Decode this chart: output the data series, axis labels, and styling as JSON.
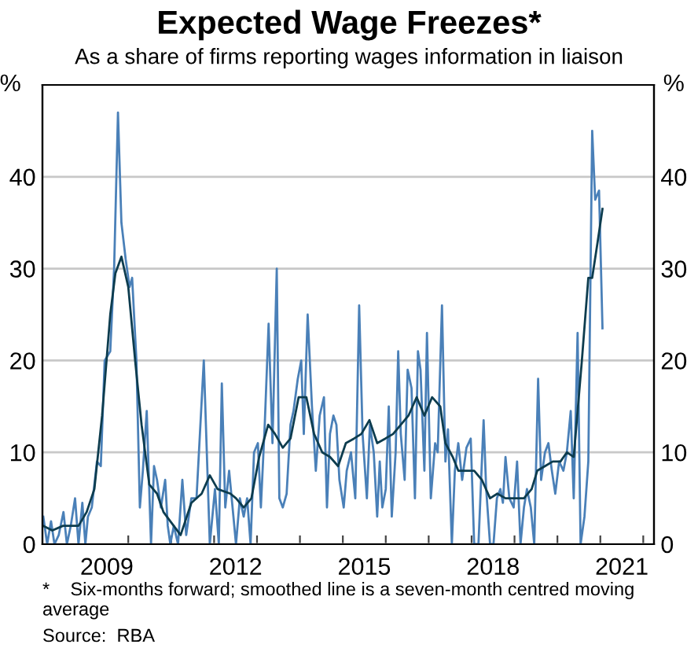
{
  "chart_data": {
    "type": "line",
    "title": "Expected Wage Freezes*",
    "subtitle": "As a share of firms reporting wages information in liaison",
    "ylabel": "%",
    "y2label": "%",
    "series": [
      {
        "color": "#4a80b8",
        "x": [
          2008.02,
          2008.11,
          2008.2,
          2008.28,
          2008.38,
          2008.49,
          2008.57,
          2008.66,
          2008.76,
          2008.84,
          2008.93,
          2009.0,
          2009.06,
          2009.15,
          2009.27,
          2009.36,
          2009.45,
          2009.58,
          2009.67,
          2009.76,
          2009.84,
          2009.94,
          2010.03,
          2010.09,
          2010.19,
          2010.27,
          2010.34,
          2010.43,
          2010.53,
          2010.6,
          2010.67,
          2010.76,
          2010.86,
          2010.92,
          2010.98,
          2011.06,
          2011.16,
          2011.26,
          2011.35,
          2011.47,
          2011.59,
          2011.76,
          2011.9,
          2012.02,
          2012.11,
          2012.18,
          2012.26,
          2012.35,
          2012.42,
          2012.51,
          2012.6,
          2012.69,
          2012.77,
          2012.85,
          2012.93,
          2013.02,
          2013.09,
          2013.18,
          2013.27,
          2013.36,
          2013.46,
          2013.52,
          2013.6,
          2013.69,
          2013.78,
          2013.85,
          2013.95,
          2014.03,
          2014.09,
          2014.18,
          2014.28,
          2014.37,
          2014.46,
          2014.56,
          2014.63,
          2014.7,
          2014.78,
          2014.85,
          2014.92,
          2015.02,
          2015.09,
          2015.19,
          2015.29,
          2015.38,
          2015.46,
          2015.56,
          2015.63,
          2015.72,
          2015.8,
          2015.86,
          2015.92,
          2016.0,
          2016.07,
          2016.14,
          2016.23,
          2016.29,
          2016.35,
          2016.44,
          2016.51,
          2016.6,
          2016.68,
          2016.75,
          2016.81,
          2016.9,
          2016.96,
          2017.05,
          2017.15,
          2017.21,
          2017.31,
          2017.39,
          2017.45,
          2017.54,
          2017.61,
          2017.69,
          2017.78,
          2017.88,
          2017.98,
          2018.06,
          2018.16,
          2018.28,
          2018.34,
          2018.43,
          2018.51,
          2018.59,
          2018.67,
          2018.73,
          2018.79,
          2018.88,
          2018.98,
          2019.06,
          2019.14,
          2019.22,
          2019.29,
          2019.38,
          2019.46,
          2019.55,
          2019.62,
          2019.71,
          2019.79,
          2019.87,
          2019.95,
          2020.04,
          2020.14,
          2020.22,
          2020.31,
          2020.38,
          2020.47,
          2020.54,
          2020.63,
          2020.72,
          2020.81,
          2020.88,
          2020.97,
          2021.05
        ],
        "values": [
          3,
          0,
          2.5,
          0,
          1,
          3.5,
          0,
          2,
          5,
          0,
          4.5,
          0,
          3,
          4,
          9,
          8.5,
          20,
          21,
          30,
          47,
          35,
          31,
          28,
          29,
          20,
          4,
          8,
          14.5,
          0,
          8.5,
          7,
          4,
          7,
          2,
          0,
          2,
          0,
          7,
          1,
          5,
          5,
          20,
          0,
          6,
          0,
          17.5,
          4,
          8,
          4.5,
          0,
          5,
          3,
          5,
          0,
          10,
          11,
          4,
          13,
          24,
          11,
          30,
          5,
          4,
          5.5,
          13,
          14.5,
          18,
          20,
          12,
          25,
          15,
          8,
          14,
          16,
          4,
          12,
          14,
          13,
          7,
          4,
          8,
          10,
          5,
          26,
          12,
          5,
          13,
          10,
          3,
          9,
          4,
          6,
          15,
          3,
          10,
          21,
          12,
          7,
          19,
          17,
          5,
          21,
          19,
          8,
          23,
          5,
          11,
          10,
          26,
          9,
          12.5,
          0,
          8,
          11,
          7,
          10.5,
          11.5,
          0,
          0,
          13.5,
          6,
          0,
          0,
          5,
          6,
          4.5,
          9.5,
          5,
          4,
          9,
          0,
          4,
          6,
          4,
          0,
          18,
          7,
          10,
          11,
          8,
          5.5,
          9,
          8,
          10,
          14.5,
          5,
          23,
          0,
          3,
          9,
          45,
          37.5,
          38.5,
          23.5
        ]
      },
      {
        "color": "#0d3c4e",
        "x": [
          2008.02,
          2008.23,
          2008.48,
          2008.84,
          2009.03,
          2009.21,
          2009.39,
          2009.58,
          2009.7,
          2009.84,
          2010.0,
          2010.16,
          2010.31,
          2010.49,
          2010.67,
          2010.82,
          2010.98,
          2011.22,
          2011.47,
          2011.71,
          2011.9,
          2012.08,
          2012.38,
          2012.51,
          2012.69,
          2012.87,
          2013.05,
          2013.26,
          2013.42,
          2013.6,
          2013.78,
          2013.97,
          2014.15,
          2014.33,
          2014.52,
          2014.7,
          2014.89,
          2015.07,
          2015.26,
          2015.43,
          2015.62,
          2015.8,
          2015.99,
          2016.17,
          2016.35,
          2016.53,
          2016.72,
          2016.9,
          2017.08,
          2017.27,
          2017.39,
          2017.56,
          2017.69,
          2017.88,
          2018.06,
          2018.24,
          2018.43,
          2018.6,
          2018.79,
          2018.98,
          2019.22,
          2019.4,
          2019.53,
          2019.71,
          2019.89,
          2020.07,
          2020.22,
          2020.38,
          2020.57,
          2020.72,
          2020.81,
          2020.94,
          2021.05
        ],
        "values": [
          2,
          1.5,
          2,
          2,
          3.5,
          6,
          14,
          25,
          29.5,
          31.3,
          28,
          20,
          13,
          6.5,
          5.5,
          3.5,
          2.5,
          1,
          4.5,
          5.5,
          7.5,
          6,
          5.5,
          5,
          4,
          5,
          9.5,
          13,
          12,
          10.5,
          11.5,
          16,
          16,
          12,
          10,
          9.5,
          8.5,
          11,
          11.5,
          12,
          13.5,
          11,
          11.5,
          12,
          13,
          14,
          16,
          14,
          16,
          15,
          11,
          9.5,
          8,
          8,
          8,
          7,
          5,
          5.5,
          5,
          5,
          5,
          6,
          8,
          8.5,
          9,
          9,
          10,
          9.5,
          20,
          29,
          29,
          33,
          36.5
        ]
      }
    ],
    "xlim": [
      2008.0,
      2022.25
    ],
    "xticks": [
      {
        "value": 2009.5,
        "label": "2009"
      },
      {
        "value": 2012.5,
        "label": "2012"
      },
      {
        "value": 2015.5,
        "label": "2015"
      },
      {
        "value": 2018.5,
        "label": "2018"
      },
      {
        "value": 2021.5,
        "label": "2021"
      },
      {
        "value": 2009,
        "label": null
      },
      {
        "value": 2010,
        "label": null
      },
      {
        "value": 2011,
        "label": null
      },
      {
        "value": 2012,
        "label": null
      },
      {
        "value": 2013,
        "label": null
      },
      {
        "value": 2014,
        "label": null
      },
      {
        "value": 2015,
        "label": null
      },
      {
        "value": 2016,
        "label": null
      },
      {
        "value": 2017,
        "label": null
      },
      {
        "value": 2018,
        "label": null
      },
      {
        "value": 2019,
        "label": null
      },
      {
        "value": 2020,
        "label": null
      },
      {
        "value": 2021,
        "label": null
      },
      {
        "value": 2022,
        "label": null
      }
    ],
    "ylim": [
      0,
      50
    ],
    "yticks": [
      0,
      10,
      20,
      30,
      40
    ],
    "y2lim": [
      0,
      50
    ],
    "y2ticks": [
      0,
      10,
      20,
      30,
      40
    ],
    "grid": "y",
    "legend": false,
    "marker": "none",
    "line_style": "solid",
    "annotations": [
      "*    Six-months forward; smoothed line is a seven-month centred moving average",
      "Source:  RBA"
    ]
  }
}
